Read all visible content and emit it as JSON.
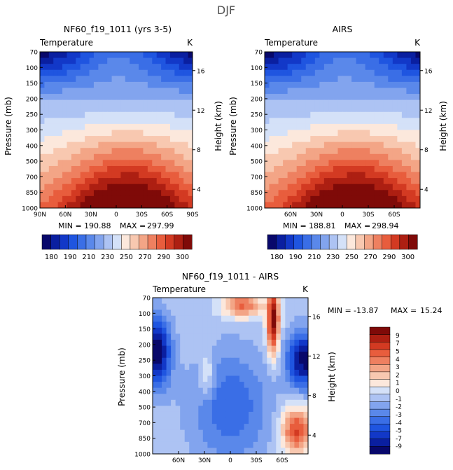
{
  "figure": {
    "title": "DJF"
  },
  "chart_data": [
    {
      "type": "heatmap",
      "id": "model",
      "title": "NF60_f19_1011 (yrs 3-5)",
      "left_label": "Temperature",
      "right_label": "K",
      "ylabel": "Pressure (mb)",
      "ylabel_right": "Height (km)",
      "yticks": [
        "70",
        "100",
        "150",
        "200",
        "250",
        "300",
        "400",
        "500",
        "700",
        "850",
        "1000"
      ],
      "height_ticks": [
        "16",
        "12",
        "8",
        "4"
      ],
      "xticks": [
        "90N",
        "60N",
        "30N",
        "0",
        "30S",
        "60S",
        "90S"
      ],
      "stats": {
        "min_label": "MIN =",
        "min": "190.88",
        "max_label": "MAX =",
        "max": "297.99"
      },
      "contour_levels": [
        180,
        185,
        190,
        200,
        210,
        220,
        230,
        240,
        250,
        260,
        270,
        280,
        290,
        295,
        300
      ],
      "colorbar_labels": [
        "180",
        "190",
        "210",
        "230",
        "250",
        "270",
        "290",
        "300"
      ]
    },
    {
      "type": "heatmap",
      "id": "obs",
      "title": "AIRS",
      "left_label": "Temperature",
      "right_label": "K",
      "ylabel": "Pressure (mb)",
      "ylabel_right": "Height (km)",
      "yticks": [
        "70",
        "100",
        "150",
        "200",
        "250",
        "300",
        "400",
        "500",
        "700",
        "850",
        "1000"
      ],
      "height_ticks": [
        "16",
        "12",
        "8",
        "4"
      ],
      "xticks": [
        "60N",
        "30N",
        "0",
        "30S",
        "60S"
      ],
      "stats": {
        "min_label": "MIN =",
        "min": "188.81",
        "max_label": "MAX =",
        "max": "298.94"
      },
      "contour_levels": [
        180,
        185,
        190,
        200,
        210,
        220,
        230,
        240,
        250,
        260,
        270,
        280,
        290,
        295,
        300
      ],
      "colorbar_labels": [
        "180",
        "190",
        "210",
        "230",
        "250",
        "270",
        "290",
        "300"
      ]
    },
    {
      "type": "heatmap",
      "id": "diff",
      "title": "NF60_f19_1011 - AIRS",
      "left_label": "Temperature",
      "right_label": "K",
      "ylabel": "Pressure (mb)",
      "ylabel_right": "Height (km)",
      "yticks": [
        "70",
        "100",
        "150",
        "200",
        "250",
        "300",
        "400",
        "500",
        "700",
        "850",
        "1000"
      ],
      "height_ticks": [
        "16",
        "12",
        "8",
        "4"
      ],
      "xticks": [
        "60N",
        "30N",
        "0",
        "30S",
        "60S"
      ],
      "stats": {
        "min_label": "MIN =",
        "min": "-13.87",
        "max_label": "MAX =",
        "max": "15.24"
      },
      "contour_levels": [
        -9,
        -7,
        -5,
        -4,
        -3,
        -2,
        -1,
        0,
        1,
        2,
        3,
        4,
        5,
        7,
        9
      ],
      "colorbar_labels": [
        "9",
        "7",
        "5",
        "4",
        "3",
        "2",
        "1",
        "0",
        "-1",
        "-2",
        "-3",
        "-4",
        "-5",
        "-7",
        "-9"
      ]
    }
  ],
  "colors": {
    "palette": [
      "#08086b",
      "#0a1fa0",
      "#1238c8",
      "#1f55e0",
      "#3a6ee6",
      "#5a88ea",
      "#82a4ee",
      "#adc3f3",
      "#d4e1f8",
      "#fce8dc",
      "#f8c8b0",
      "#f3a586",
      "#ee8060",
      "#e85d3d",
      "#d33a22",
      "#ad1f12",
      "#7f0a08"
    ]
  }
}
